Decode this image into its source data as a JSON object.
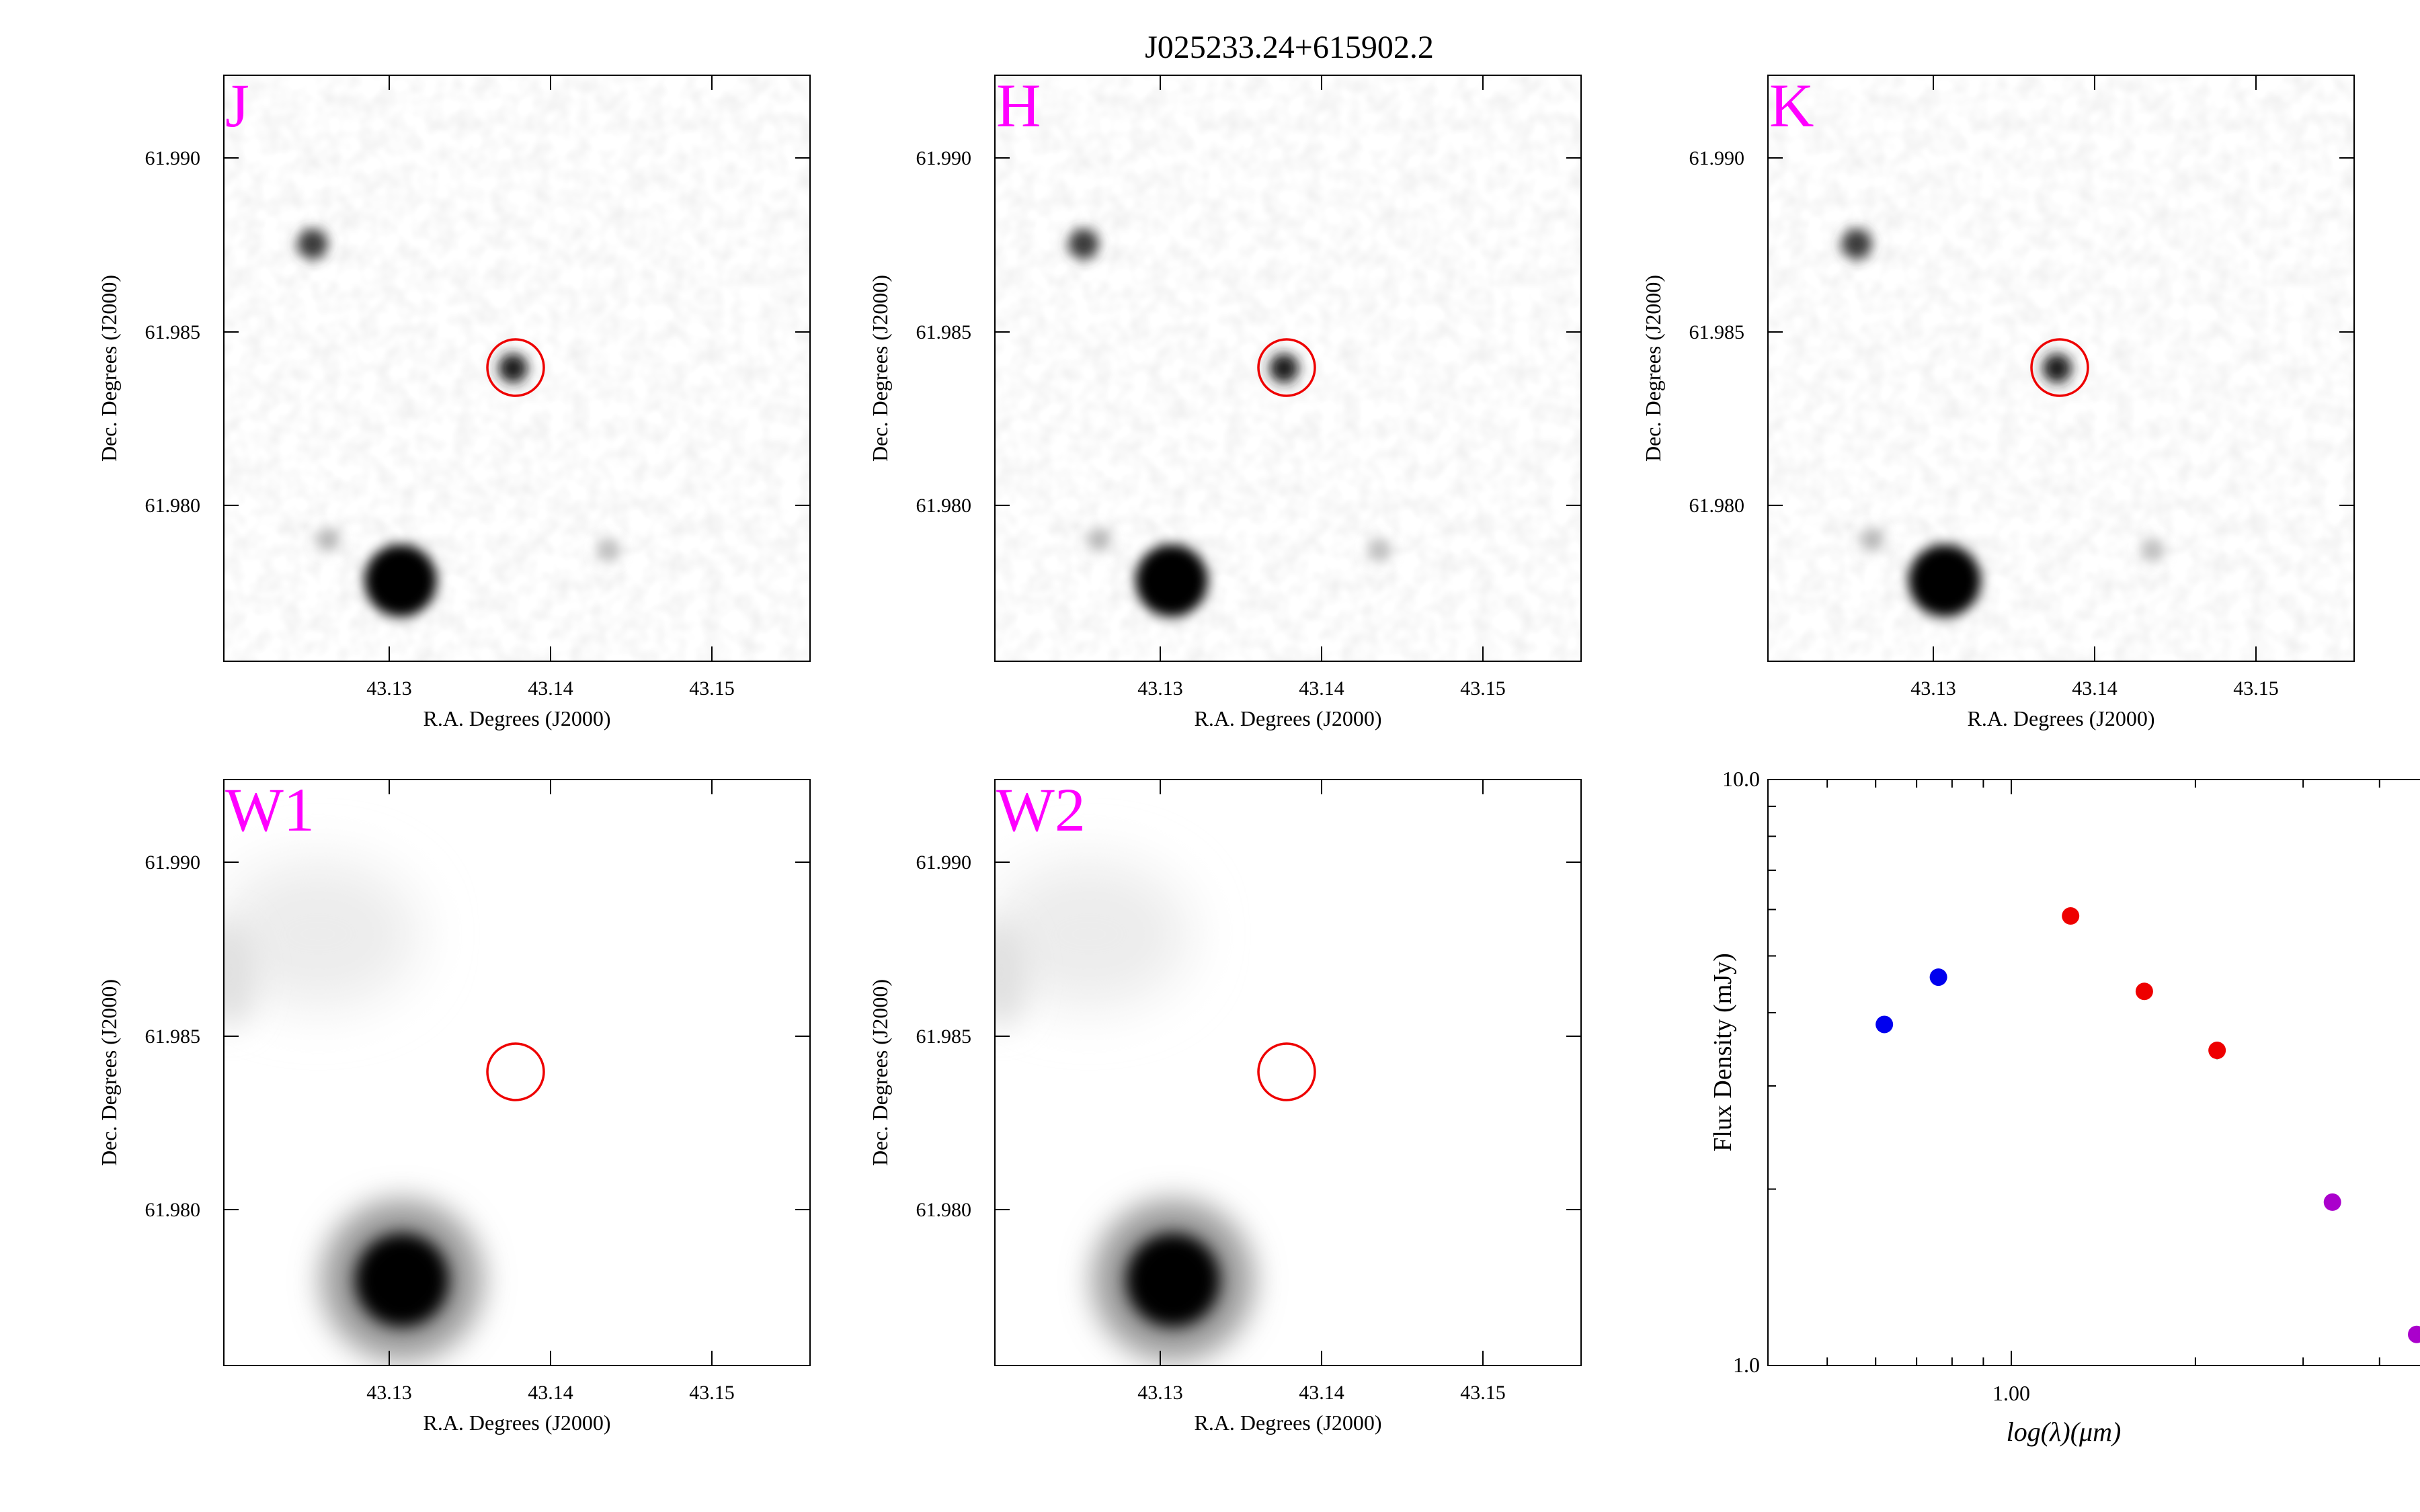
{
  "figure": {
    "title": "J025233.24+615902.2"
  },
  "image_panels": [
    {
      "band": "J",
      "xlabel": "R.A. Degrees (J2000)",
      "ylabel": "Dec. Degrees (J2000)",
      "xticks": [
        "43.13",
        "43.14",
        "43.15"
      ],
      "yticks": [
        "61.990",
        "61.985",
        "61.980"
      ],
      "target_marked": true
    },
    {
      "band": "H",
      "xlabel": "R.A. Degrees (J2000)",
      "ylabel": "Dec. Degrees (J2000)",
      "xticks": [
        "43.13",
        "43.14",
        "43.15"
      ],
      "yticks": [
        "61.990",
        "61.985",
        "61.980"
      ],
      "target_marked": true
    },
    {
      "band": "K",
      "xlabel": "R.A. Degrees (J2000)",
      "ylabel": "Dec. Degrees (J2000)",
      "xticks": [
        "43.13",
        "43.14",
        "43.15"
      ],
      "yticks": [
        "61.990",
        "61.985",
        "61.980"
      ],
      "target_marked": true
    },
    {
      "band": "W1",
      "xlabel": "R.A. Degrees (J2000)",
      "ylabel": "Dec. Degrees (J2000)",
      "xticks": [
        "43.13",
        "43.14",
        "43.15"
      ],
      "yticks": [
        "61.990",
        "61.985",
        "61.980"
      ],
      "target_marked": true
    },
    {
      "band": "W2",
      "xlabel": "R.A. Degrees (J2000)",
      "ylabel": "Dec. Degrees (J2000)",
      "xticks": [
        "43.13",
        "43.14",
        "43.15"
      ],
      "yticks": [
        "61.990",
        "61.985",
        "61.980"
      ],
      "target_marked": true
    }
  ],
  "chart_data": {
    "type": "scatter",
    "title": "",
    "xlabel": "log(λ)(μm)",
    "ylabel": "Flux Density (mJy)",
    "xscale": "log",
    "yscale": "log",
    "xlim": [
      0.4,
      6.0
    ],
    "ylim": [
      1.0,
      10.0
    ],
    "x_tick_labels": [
      "1.00"
    ],
    "y_tick_labels": [
      "1.0",
      "10.0"
    ],
    "grid": false,
    "series": [
      {
        "color": "#0000ee",
        "x": [
          0.62,
          0.76
        ],
        "y": [
          3.82,
          4.6
        ],
        "yerr": [
          0.05,
          0.05
        ]
      },
      {
        "color": "#ee0000",
        "x": [
          1.25,
          1.65,
          2.17
        ],
        "y": [
          5.85,
          4.35,
          3.45
        ],
        "yerr": [
          0.08,
          0.12,
          0.12
        ]
      },
      {
        "color": "#aa00cc",
        "x": [
          3.35,
          4.6
        ],
        "y": [
          1.9,
          1.13
        ],
        "yerr": [
          0.04,
          0.03
        ]
      }
    ]
  },
  "colors": {
    "band_label": "#ff00ff",
    "target_circle": "#ee0000"
  }
}
